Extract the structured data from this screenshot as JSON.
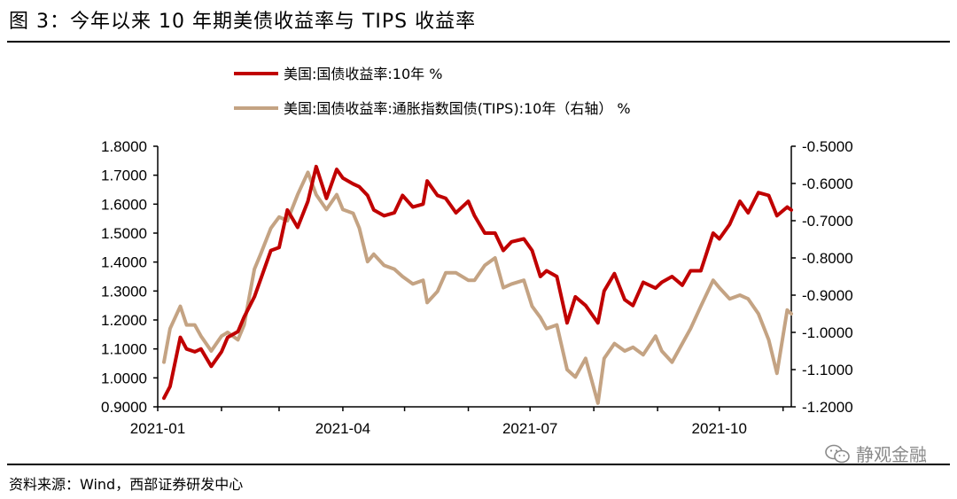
{
  "figure": {
    "title": "图 3：今年以来 10 年期美债收益率与 TIPS 收益率",
    "source": "资料来源：Wind，西部证券研发中心",
    "watermark": "静观金融"
  },
  "chart_data": {
    "type": "line",
    "title": "今年以来 10 年期美债收益率与 TIPS 收益率",
    "x_tick_labels": [
      "2021-01",
      "2021-04",
      "2021-07",
      "2021-10"
    ],
    "x_range": [
      "2021-01-01",
      "2021-11-05"
    ],
    "left_axis": {
      "min": 0.9,
      "max": 1.8,
      "tick_labels": [
        "0.9000",
        "1.0000",
        "1.1000",
        "1.2000",
        "1.3000",
        "1.4000",
        "1.5000",
        "1.6000",
        "1.7000",
        "1.8000"
      ]
    },
    "right_axis": {
      "min": -1.2,
      "max": -0.5,
      "tick_labels": [
        "-1.2000",
        "-1.1000",
        "-1.0000",
        "-0.9000",
        "-0.8000",
        "-0.7000",
        "-0.6000",
        "-0.5000"
      ]
    },
    "colors": {
      "nominal": "#c00000",
      "tips": "#c4a383"
    },
    "series": [
      {
        "name": "美国:国债收益率:10年 %",
        "axis": "left",
        "x": [
          "2021-01-04",
          "2021-01-07",
          "2021-01-12",
          "2021-01-15",
          "2021-01-19",
          "2021-01-22",
          "2021-01-27",
          "2021-02-01",
          "2021-02-04",
          "2021-02-09",
          "2021-02-12",
          "2021-02-17",
          "2021-02-20",
          "2021-02-25",
          "2021-03-01",
          "2021-03-05",
          "2021-03-10",
          "2021-03-15",
          "2021-03-19",
          "2021-03-24",
          "2021-03-29",
          "2021-04-01",
          "2021-04-06",
          "2021-04-09",
          "2021-04-13",
          "2021-04-16",
          "2021-04-21",
          "2021-04-26",
          "2021-04-30",
          "2021-05-05",
          "2021-05-10",
          "2021-05-12",
          "2021-05-17",
          "2021-05-21",
          "2021-05-26",
          "2021-06-01",
          "2021-06-04",
          "2021-06-09",
          "2021-06-14",
          "2021-06-18",
          "2021-06-22",
          "2021-06-28",
          "2021-07-02",
          "2021-07-06",
          "2021-07-09",
          "2021-07-14",
          "2021-07-19",
          "2021-07-23",
          "2021-07-28",
          "2021-08-03",
          "2021-08-06",
          "2021-08-11",
          "2021-08-16",
          "2021-08-20",
          "2021-08-25",
          "2021-08-31",
          "2021-09-03",
          "2021-09-08",
          "2021-09-13",
          "2021-09-17",
          "2021-09-22",
          "2021-09-28",
          "2021-10-01",
          "2021-10-06",
          "2021-10-11",
          "2021-10-15",
          "2021-10-20",
          "2021-10-25",
          "2021-10-29",
          "2021-11-03",
          "2021-11-05"
        ],
        "values": [
          0.93,
          0.97,
          1.14,
          1.1,
          1.09,
          1.1,
          1.04,
          1.09,
          1.14,
          1.16,
          1.21,
          1.28,
          1.34,
          1.44,
          1.45,
          1.58,
          1.52,
          1.61,
          1.73,
          1.62,
          1.72,
          1.69,
          1.67,
          1.66,
          1.63,
          1.58,
          1.56,
          1.57,
          1.63,
          1.59,
          1.6,
          1.68,
          1.63,
          1.62,
          1.57,
          1.61,
          1.56,
          1.5,
          1.5,
          1.44,
          1.47,
          1.48,
          1.44,
          1.35,
          1.37,
          1.35,
          1.19,
          1.28,
          1.25,
          1.19,
          1.3,
          1.36,
          1.27,
          1.25,
          1.33,
          1.31,
          1.33,
          1.35,
          1.32,
          1.37,
          1.37,
          1.5,
          1.48,
          1.53,
          1.61,
          1.57,
          1.64,
          1.63,
          1.56,
          1.59,
          1.58
        ]
      },
      {
        "name": "美国:国债收益率:通胀指数国债(TIPS):10年（右轴） %",
        "axis": "right",
        "x": [
          "2021-01-04",
          "2021-01-07",
          "2021-01-12",
          "2021-01-15",
          "2021-01-19",
          "2021-01-22",
          "2021-01-27",
          "2021-02-01",
          "2021-02-04",
          "2021-02-09",
          "2021-02-12",
          "2021-02-17",
          "2021-02-20",
          "2021-02-25",
          "2021-03-01",
          "2021-03-05",
          "2021-03-10",
          "2021-03-15",
          "2021-03-19",
          "2021-03-24",
          "2021-03-29",
          "2021-04-01",
          "2021-04-06",
          "2021-04-09",
          "2021-04-13",
          "2021-04-16",
          "2021-04-21",
          "2021-04-26",
          "2021-04-30",
          "2021-05-05",
          "2021-05-10",
          "2021-05-12",
          "2021-05-17",
          "2021-05-21",
          "2021-05-26",
          "2021-06-01",
          "2021-06-04",
          "2021-06-09",
          "2021-06-14",
          "2021-06-18",
          "2021-06-22",
          "2021-06-28",
          "2021-07-02",
          "2021-07-06",
          "2021-07-09",
          "2021-07-14",
          "2021-07-19",
          "2021-07-23",
          "2021-07-28",
          "2021-08-03",
          "2021-08-06",
          "2021-08-11",
          "2021-08-16",
          "2021-08-20",
          "2021-08-25",
          "2021-08-31",
          "2021-09-03",
          "2021-09-08",
          "2021-09-13",
          "2021-09-17",
          "2021-09-22",
          "2021-09-28",
          "2021-10-01",
          "2021-10-06",
          "2021-10-11",
          "2021-10-15",
          "2021-10-20",
          "2021-10-25",
          "2021-10-29",
          "2021-11-03",
          "2021-11-05"
        ],
        "values": [
          -1.08,
          -0.99,
          -0.93,
          -0.98,
          -0.98,
          -1.01,
          -1.05,
          -1.01,
          -1.0,
          -1.02,
          -0.98,
          -0.83,
          -0.79,
          -0.72,
          -0.69,
          -0.7,
          -0.63,
          -0.57,
          -0.63,
          -0.67,
          -0.63,
          -0.67,
          -0.68,
          -0.72,
          -0.81,
          -0.79,
          -0.82,
          -0.83,
          -0.85,
          -0.87,
          -0.86,
          -0.92,
          -0.89,
          -0.84,
          -0.84,
          -0.86,
          -0.86,
          -0.82,
          -0.8,
          -0.88,
          -0.87,
          -0.86,
          -0.93,
          -0.96,
          -0.99,
          -0.98,
          -1.1,
          -1.12,
          -1.07,
          -1.19,
          -1.07,
          -1.03,
          -1.05,
          -1.04,
          -1.06,
          -1.01,
          -1.05,
          -1.08,
          -1.03,
          -0.99,
          -0.93,
          -0.86,
          -0.88,
          -0.91,
          -0.9,
          -0.91,
          -0.95,
          -1.02,
          -1.11,
          -0.94,
          -0.95
        ]
      }
    ]
  }
}
